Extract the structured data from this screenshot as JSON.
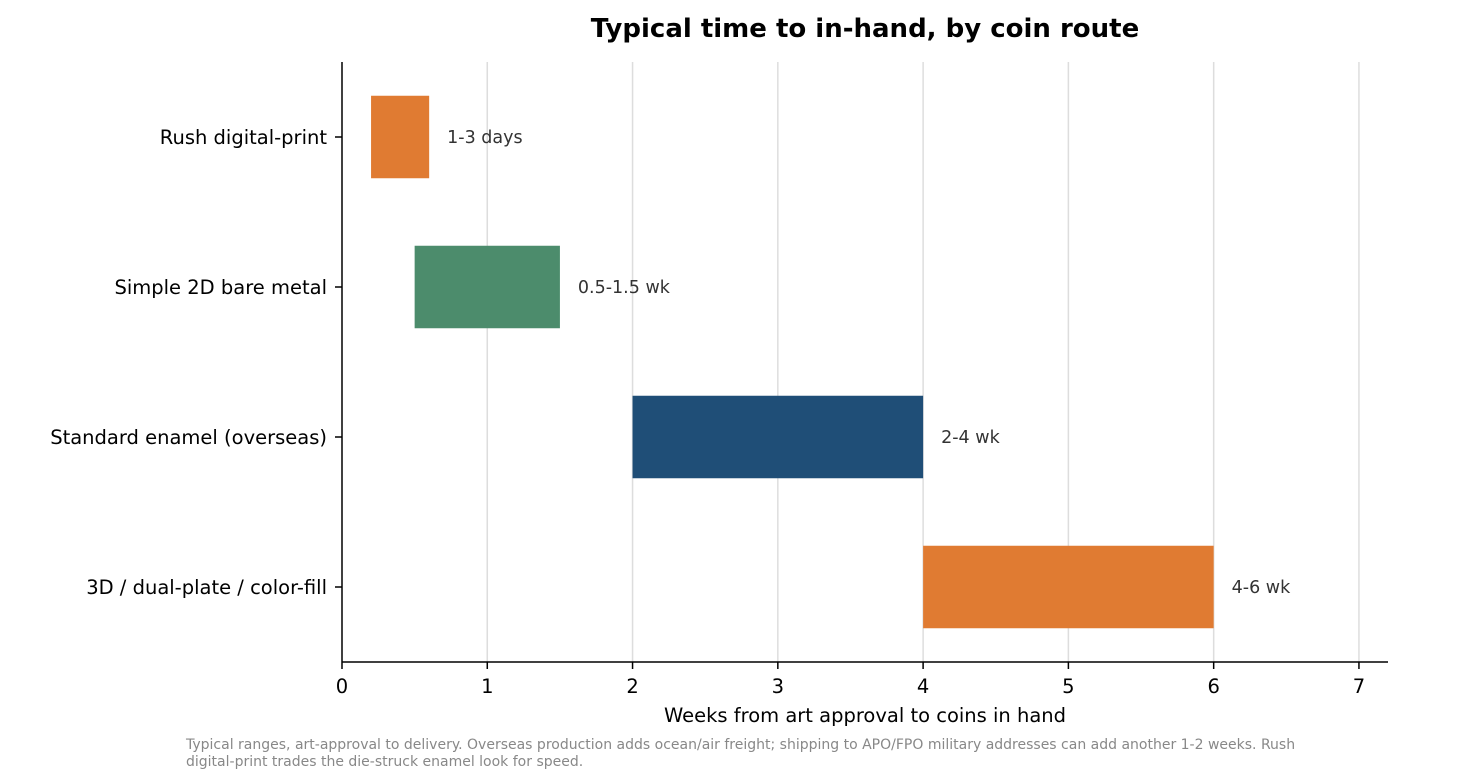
{
  "chart_data": {
    "type": "bar",
    "orientation": "horizontal",
    "title": "Typical time to in-hand, by coin route",
    "xlabel": "Weeks from art approval to coins in hand",
    "ylabel": "",
    "xlim": [
      0,
      7.2
    ],
    "xticks": [
      "0",
      "1",
      "2",
      "3",
      "4",
      "5",
      "6",
      "7"
    ],
    "grid": "vertical",
    "categories": [
      "Rush digital-print",
      "Simple 2D bare metal",
      "Standard enamel (overseas)",
      "3D / dual-plate / color-fill"
    ],
    "ranges": [
      {
        "start": 0.2,
        "end": 0.6,
        "label": "1-3 days",
        "color": "#E07B32"
      },
      {
        "start": 0.5,
        "end": 1.5,
        "label": "0.5-1.5 wk",
        "color": "#4C8C6C"
      },
      {
        "start": 2.0,
        "end": 4.0,
        "label": "2-4 wk",
        "color": "#1F4E77"
      },
      {
        "start": 4.0,
        "end": 6.0,
        "label": "4-6 wk",
        "color": "#E07B32"
      }
    ],
    "note_lines": [
      "Typical ranges, art-approval to delivery. Overseas production adds ocean/air freight; shipping to APO/FPO military addresses can add another 1-2 weeks. Rush",
      "digital-print trades the die-struck enamel look for speed."
    ]
  }
}
